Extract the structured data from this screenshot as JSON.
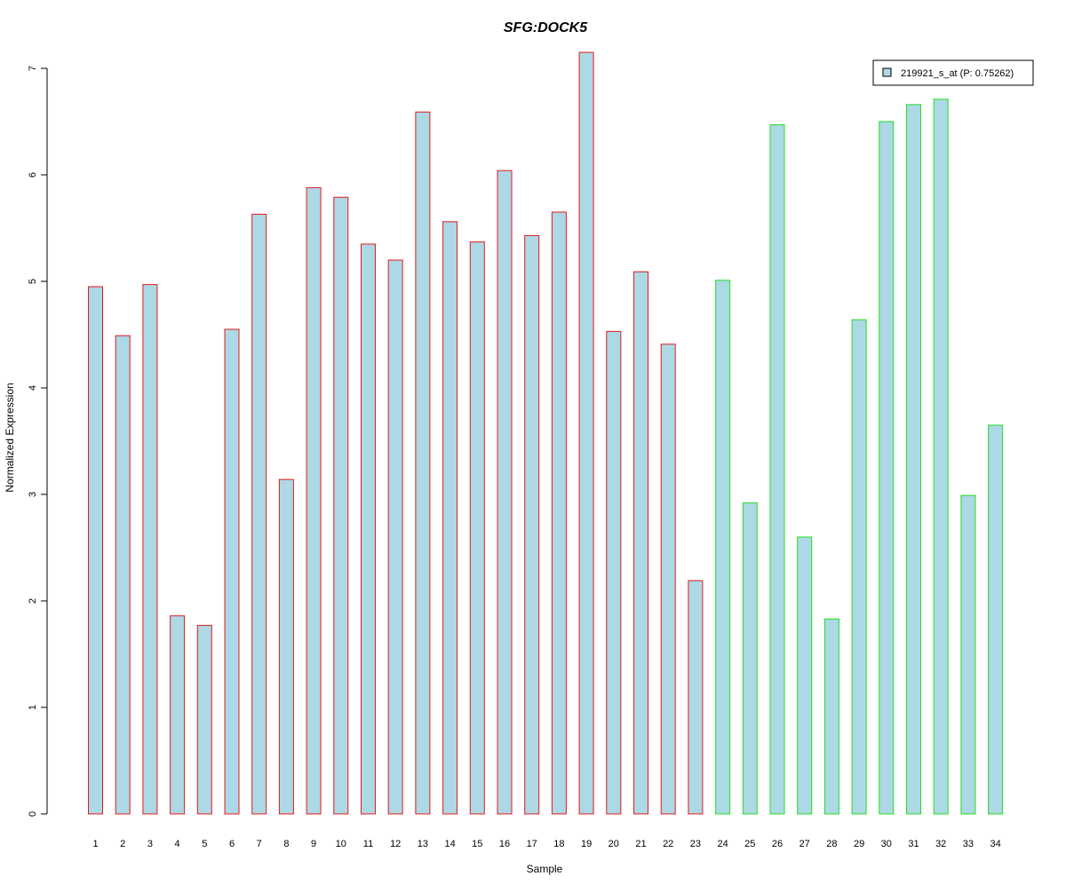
{
  "chart_data": {
    "type": "bar",
    "title": "SFG:DOCK5",
    "xlabel": "Sample",
    "ylabel": "Normalized Expression",
    "ylim": [
      0,
      7
    ],
    "yticks": [
      0,
      1,
      2,
      3,
      4,
      5,
      6,
      7
    ],
    "categories": [
      "1",
      "2",
      "3",
      "4",
      "5",
      "6",
      "7",
      "8",
      "9",
      "10",
      "11",
      "12",
      "13",
      "14",
      "15",
      "16",
      "17",
      "18",
      "19",
      "20",
      "21",
      "22",
      "23",
      "24",
      "25",
      "26",
      "27",
      "28",
      "29",
      "30",
      "31",
      "32",
      "33",
      "34"
    ],
    "series": [
      {
        "name": "219921_s_at (P: 0.75262)",
        "values": [
          4.95,
          4.49,
          4.97,
          1.86,
          1.77,
          4.55,
          5.63,
          3.14,
          5.88,
          5.79,
          5.35,
          5.2,
          6.59,
          5.56,
          5.37,
          6.04,
          5.43,
          5.65,
          7.15,
          4.53,
          5.09,
          4.41,
          2.19,
          5.01,
          2.92,
          6.47,
          2.6,
          1.83,
          4.64,
          6.5,
          6.66,
          6.71,
          2.99,
          3.65
        ]
      }
    ],
    "groups": [
      {
        "from": 1,
        "to": 23,
        "outline": "#e31a1c"
      },
      {
        "from": 24,
        "to": 34,
        "outline": "#1fe01f"
      }
    ],
    "legend": {
      "position": "top-right",
      "label": "219921_s_at (P: 0.75262)"
    },
    "grid": false
  },
  "colors": {
    "bar_fill": "#add8e6",
    "title": "#0000cc",
    "axis": "#000000"
  }
}
